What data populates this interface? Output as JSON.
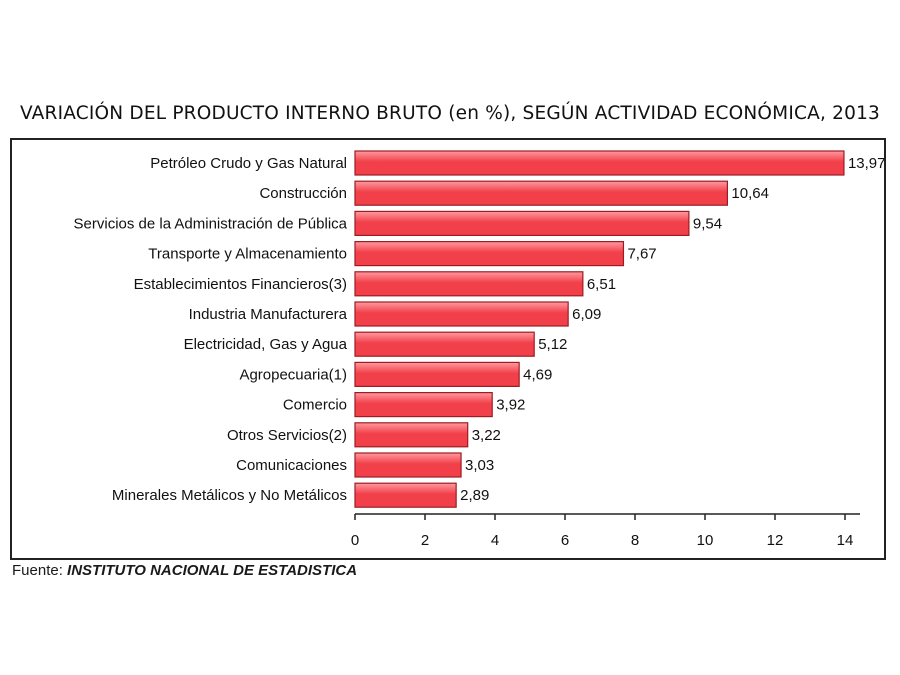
{
  "source": {
    "prefix": "Fuente:",
    "org": "INSTITUTO NACIONAL DE ESTADISTICA"
  },
  "colors": {
    "bar_fill": "#f2404a",
    "bar_highlight": "#ff9ba0",
    "bar_stroke": "#9e1b22",
    "axis": "#222222"
  },
  "chart_data": {
    "type": "bar",
    "orientation": "horizontal",
    "title": "VARIACIÓN DEL PRODUCTO INTERNO BRUTO (en %), SEGÚN ACTIVIDAD ECONÓMICA, 2013",
    "xlabel": "",
    "ylabel": "",
    "xlim": [
      0,
      14
    ],
    "xticks": [
      0,
      2,
      4,
      6,
      8,
      10,
      12,
      14
    ],
    "grid": false,
    "categories": [
      "Petróleo Crudo y Gas Natural",
      "Construcción",
      "Servicios de la Administración de Pública",
      "Transporte y Almacenamiento",
      "Establecimientos Financieros(3)",
      "Industria Manufacturera",
      "Electricidad, Gas y Agua",
      "Agropecuaria(1)",
      "Comercio",
      "Otros Servicios(2)",
      "Comunicaciones",
      "Minerales Metálicos y No Metálicos"
    ],
    "values": [
      13.97,
      10.64,
      9.54,
      7.67,
      6.51,
      6.09,
      5.12,
      4.69,
      3.92,
      3.22,
      3.03,
      2.89
    ],
    "value_labels": [
      "13,97",
      "10,64",
      "9,54",
      "7,67",
      "6,51",
      "6,09",
      "5,12",
      "4,69",
      "3,92",
      "3,22",
      "3,03",
      "2,89"
    ]
  }
}
